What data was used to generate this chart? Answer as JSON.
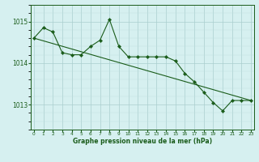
{
  "line1_x": [
    0,
    1,
    2,
    3,
    4,
    5,
    6,
    7,
    8,
    9,
    10,
    11,
    12,
    13,
    14,
    15,
    16,
    17,
    18,
    19,
    20,
    21,
    22,
    23
  ],
  "line1_y": [
    1014.6,
    1014.85,
    1014.75,
    1014.25,
    1014.2,
    1014.2,
    1014.4,
    1014.55,
    1015.05,
    1014.4,
    1014.15,
    1014.15,
    1014.15,
    1014.15,
    1014.15,
    1014.05,
    1013.75,
    1013.55,
    1013.3,
    1013.05,
    1012.85,
    1013.1,
    1013.1,
    1013.1
  ],
  "line2_x": [
    0,
    23
  ],
  "line2_y": [
    1014.6,
    1013.1
  ],
  "line_color": "#1a5c1a",
  "bg_color": "#d6f0f0",
  "grid_color_major": "#aacece",
  "grid_color_minor": "#c0e0e0",
  "xlabel": "Graphe pression niveau de la mer (hPa)",
  "yticks": [
    1013,
    1014,
    1015
  ],
  "xticks": [
    0,
    1,
    2,
    3,
    4,
    5,
    6,
    7,
    8,
    9,
    10,
    11,
    12,
    13,
    14,
    15,
    16,
    17,
    18,
    19,
    20,
    21,
    22,
    23
  ],
  "ylim": [
    1012.4,
    1015.4
  ],
  "xlim": [
    -0.3,
    23.3
  ]
}
